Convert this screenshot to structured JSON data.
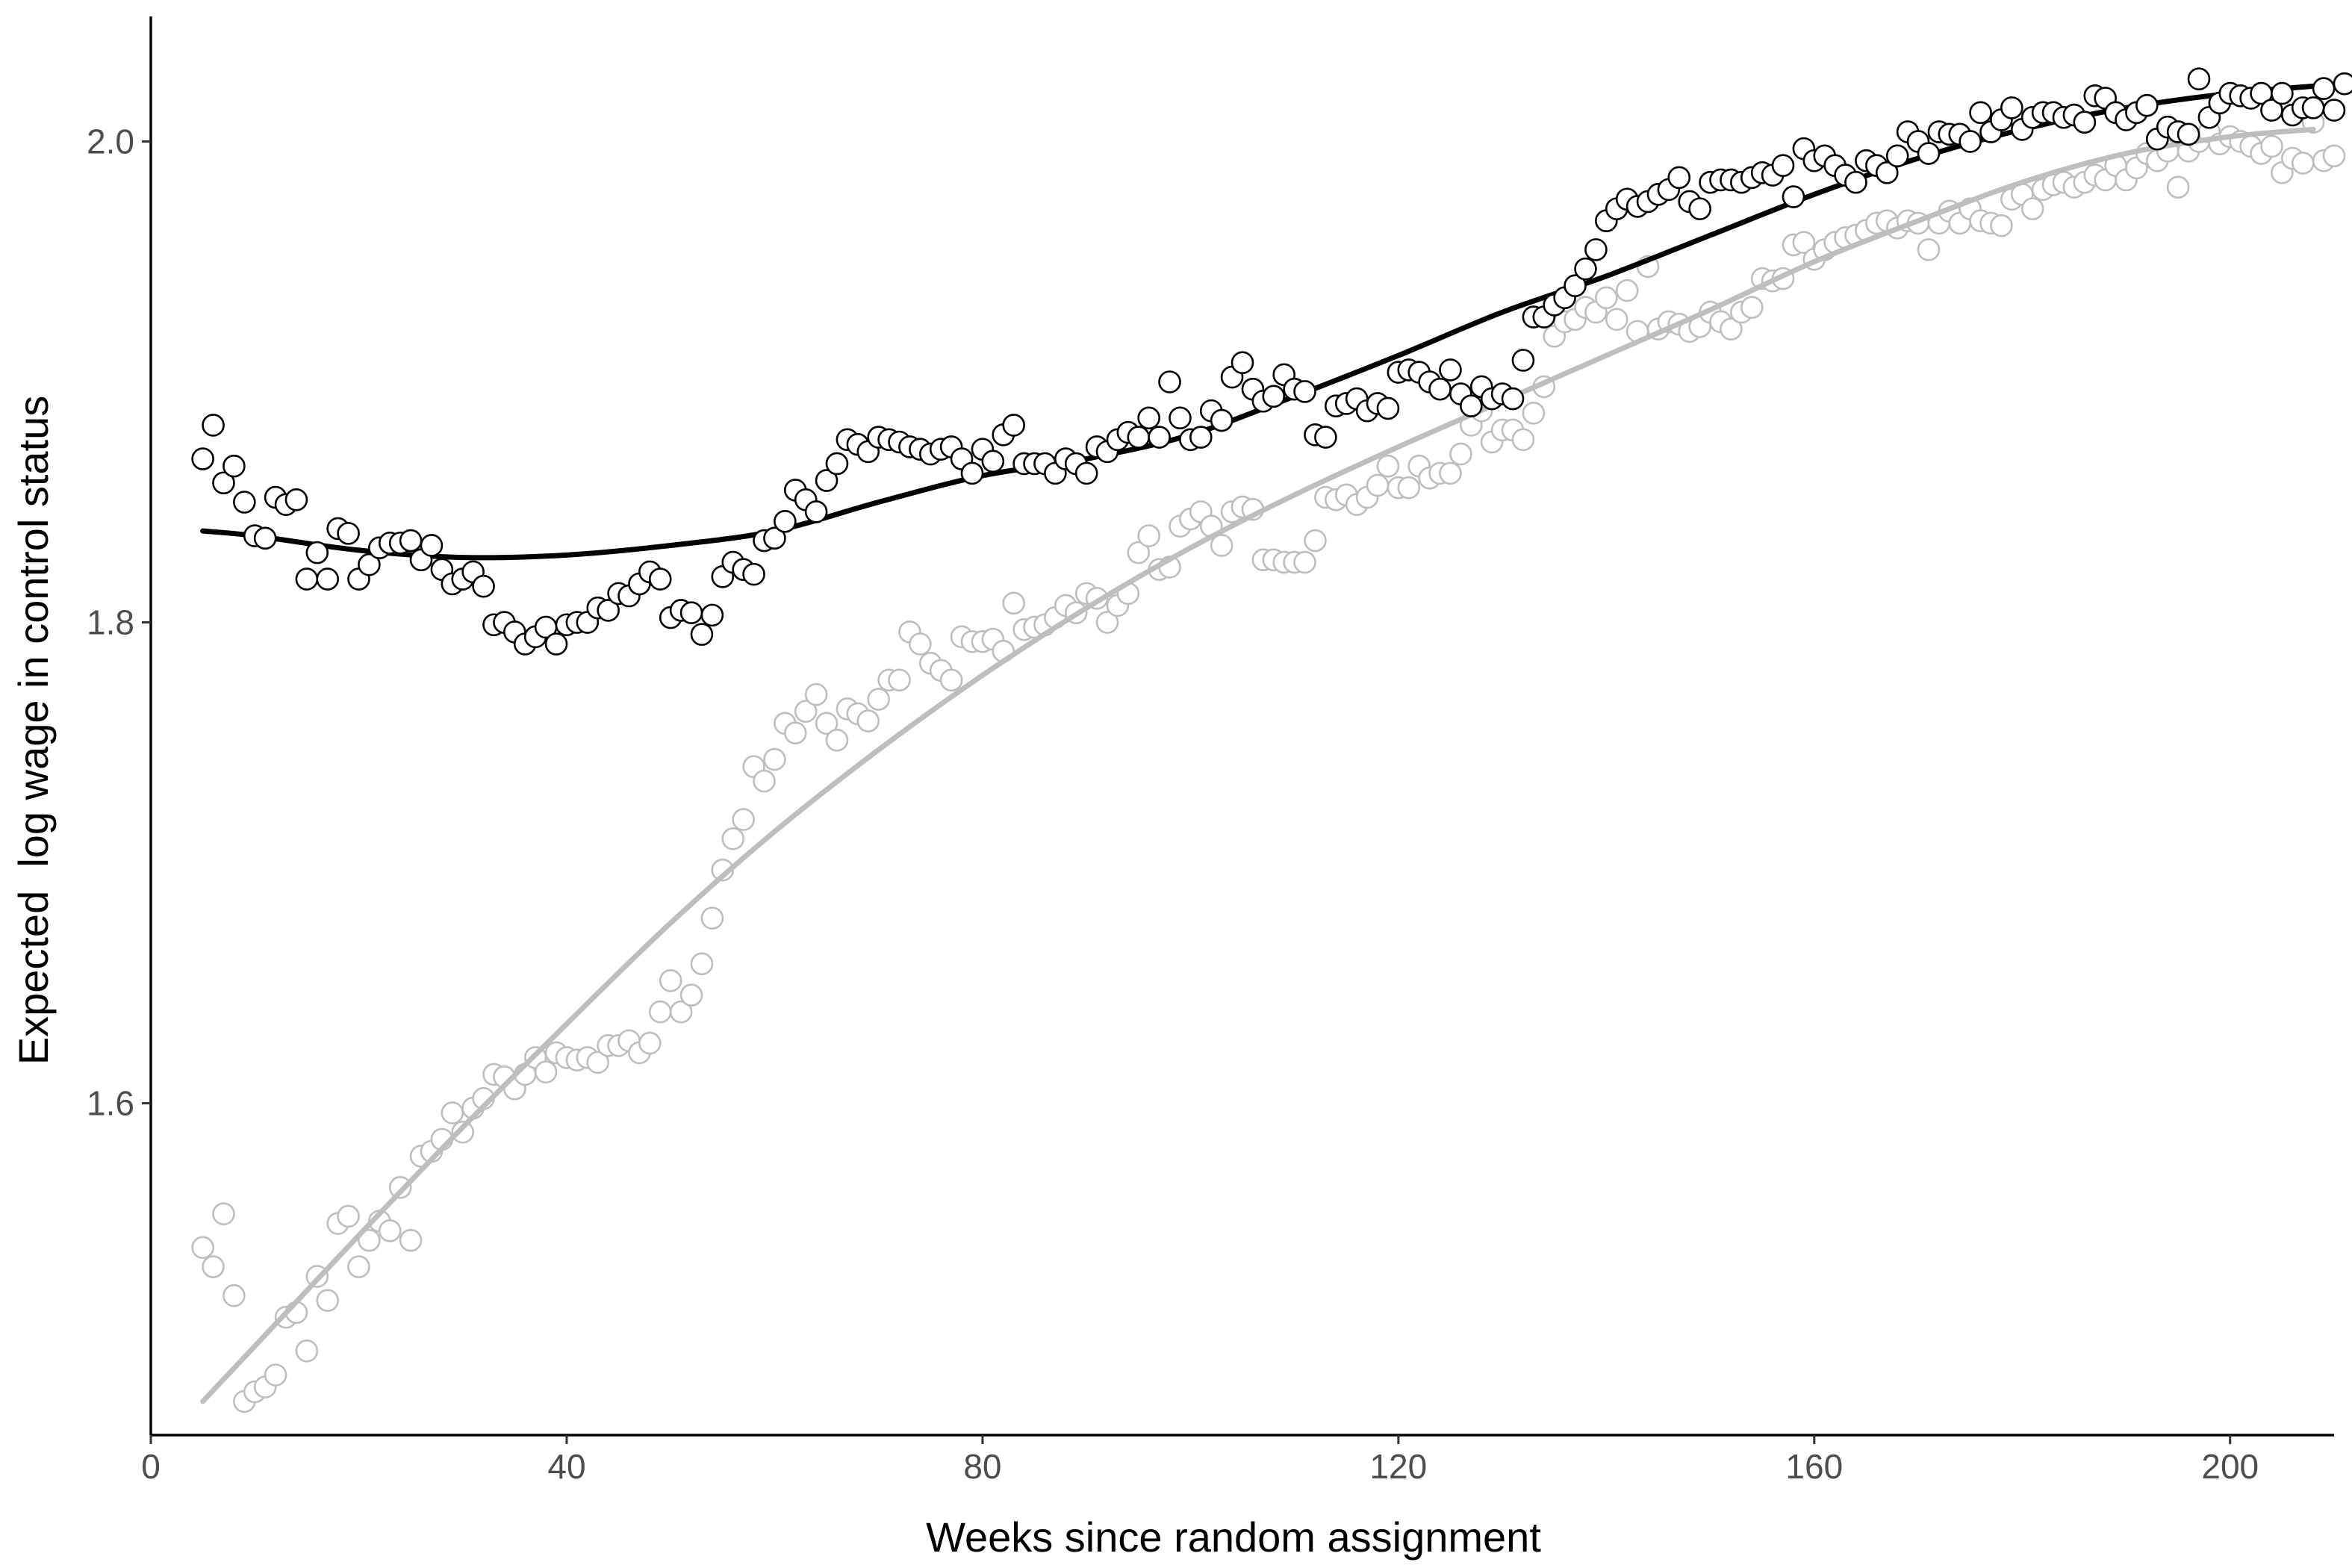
{
  "chart_data": {
    "type": "scatter",
    "title": "",
    "xlabel": "Weeks since random assignment",
    "ylabel": "Expected  log wage in control status",
    "xlim": [
      0,
      210
    ],
    "ylim": [
      1.462,
      2.052
    ],
    "xticks": [
      0,
      40,
      80,
      120,
      160,
      200
    ],
    "yticks": [
      1.6,
      1.8,
      2.0
    ],
    "xtick_labels": [
      "0",
      "40",
      "80",
      "120",
      "160",
      "200"
    ],
    "ytick_labels": [
      "1.6",
      "1.8",
      "2.0"
    ],
    "grid": false,
    "legend": "none",
    "x_start": 5,
    "series": [
      {
        "color": "#000000",
        "marker": "open-circle",
        "values": [
          1.868,
          1.882,
          1.858,
          1.865,
          1.85,
          1.836,
          1.835,
          1.852,
          1.849,
          1.851,
          1.818,
          1.829,
          1.818,
          1.839,
          1.837,
          1.818,
          1.824,
          1.831,
          1.833,
          1.833,
          1.834,
          1.826,
          1.832,
          1.822,
          1.816,
          1.818,
          1.821,
          1.815,
          1.799,
          1.8,
          1.796,
          1.791,
          1.794,
          1.798,
          1.791,
          1.799,
          1.8,
          1.8,
          1.806,
          1.805,
          1.812,
          1.811,
          1.816,
          1.821,
          1.818,
          1.802,
          1.805,
          1.804,
          1.795,
          1.803,
          1.819,
          1.825,
          1.822,
          1.82,
          1.834,
          1.835,
          1.842,
          1.855,
          1.851,
          1.846,
          1.859,
          1.866,
          1.876,
          1.874,
          1.871,
          1.877,
          1.876,
          1.875,
          1.873,
          1.872,
          1.87,
          1.872,
          1.873,
          1.868,
          1.862,
          1.872,
          1.867,
          1.878,
          1.882,
          1.866,
          1.866,
          1.866,
          1.862,
          1.868,
          1.866,
          1.862,
          1.873,
          1.871,
          1.876,
          1.879,
          1.877,
          1.885,
          1.877,
          1.9,
          1.885,
          1.876,
          1.877,
          1.888,
          1.884,
          1.902,
          1.908,
          1.897,
          1.892,
          1.894,
          1.903,
          1.897,
          1.896,
          1.878,
          1.877,
          1.89,
          1.891,
          1.893,
          1.888,
          1.891,
          1.889,
          1.904,
          1.905,
          1.904,
          1.9,
          1.897,
          1.905,
          1.895,
          1.89,
          1.898,
          1.893,
          1.895,
          1.893,
          1.909,
          1.927,
          1.927,
          1.932,
          1.935,
          1.94,
          1.947,
          1.955,
          1.967,
          1.972,
          1.976,
          1.973,
          1.975,
          1.978,
          1.98,
          1.985,
          1.975,
          1.972,
          1.983,
          1.984,
          1.984,
          1.983,
          1.985,
          1.987,
          1.986,
          1.99,
          1.977,
          1.997,
          1.992,
          1.994,
          1.99,
          1.986,
          1.983,
          1.992,
          1.99,
          1.987,
          1.994,
          2.004,
          2.0,
          1.995,
          2.004,
          2.003,
          2.003,
          2.0,
          2.012,
          2.004,
          2.009,
          2.014,
          2.005,
          2.01,
          2.012,
          2.012,
          2.01,
          2.011,
          2.008,
          2.019,
          2.018,
          2.012,
          2.009,
          2.012,
          2.015,
          2.001,
          2.006,
          2.004,
          2.003,
          2.026,
          2.01,
          2.016,
          2.02,
          2.019,
          2.018,
          2.02,
          2.013,
          2.02,
          2.011,
          2.014,
          2.014,
          2.022,
          2.013,
          2.024
        ]
      },
      {
        "color": "#bebebe",
        "marker": "open-circle",
        "values": [
          1.54,
          1.532,
          1.554,
          1.52,
          1.476,
          1.48,
          1.482,
          1.487,
          1.511,
          1.513,
          1.497,
          1.528,
          1.518,
          1.55,
          1.553,
          1.532,
          1.543,
          1.551,
          1.547,
          1.565,
          1.543,
          1.578,
          1.58,
          1.585,
          1.596,
          1.588,
          1.598,
          1.602,
          1.612,
          1.611,
          1.606,
          1.612,
          1.619,
          1.613,
          1.621,
          1.619,
          1.618,
          1.619,
          1.617,
          1.624,
          1.624,
          1.626,
          1.621,
          1.625,
          1.638,
          1.651,
          1.638,
          1.645,
          1.658,
          1.677,
          1.697,
          1.71,
          1.718,
          1.74,
          1.734,
          1.743,
          1.758,
          1.754,
          1.763,
          1.77,
          1.758,
          1.751,
          1.764,
          1.762,
          1.759,
          1.768,
          1.776,
          1.776,
          1.796,
          1.791,
          1.783,
          1.78,
          1.776,
          1.794,
          1.792,
          1.792,
          1.793,
          1.788,
          1.808,
          1.797,
          1.798,
          1.799,
          1.802,
          1.807,
          1.804,
          1.812,
          1.81,
          1.8,
          1.807,
          1.812,
          1.829,
          1.836,
          1.822,
          1.823,
          1.84,
          1.843,
          1.846,
          1.84,
          1.832,
          1.846,
          1.848,
          1.847,
          1.826,
          1.826,
          1.825,
          1.825,
          1.825,
          1.834,
          1.852,
          1.851,
          1.853,
          1.849,
          1.852,
          1.857,
          1.865,
          1.856,
          1.856,
          1.865,
          1.86,
          1.862,
          1.862,
          1.87,
          1.882,
          1.888,
          1.875,
          1.88,
          1.88,
          1.876,
          1.887,
          1.898,
          1.919,
          1.925,
          1.926,
          1.931,
          1.929,
          1.935,
          1.926,
          1.938,
          1.921,
          1.948,
          1.922,
          1.925,
          1.924,
          1.921,
          1.923,
          1.929,
          1.925,
          1.922,
          1.929,
          1.931,
          1.943,
          1.942,
          1.943,
          1.957,
          1.958,
          1.951,
          1.955,
          1.958,
          1.96,
          1.961,
          1.963,
          1.966,
          1.967,
          1.964,
          1.967,
          1.966,
          1.955,
          1.966,
          1.971,
          1.966,
          1.972,
          1.967,
          1.966,
          1.965,
          1.976,
          1.978,
          1.972,
          1.98,
          1.982,
          1.983,
          1.981,
          1.983,
          1.986,
          1.984,
          1.99,
          1.984,
          1.989,
          1.995,
          1.992,
          1.996,
          1.981,
          1.996,
          2.0,
          2.004,
          1.999,
          2.002,
          2.0,
          1.998,
          1.995,
          1.998,
          1.987,
          1.993,
          1.991,
          2.008,
          1.992,
          1.994
        ]
      }
    ],
    "fitted_lines": [
      {
        "color": "#000000",
        "x": [
          5,
          10,
          20,
          30,
          40,
          50,
          60,
          70,
          80,
          90,
          100,
          110,
          120,
          130,
          140,
          150,
          160,
          170,
          180,
          190,
          200,
          208
        ],
        "y": [
          1.838,
          1.836,
          1.83,
          1.827,
          1.828,
          1.832,
          1.838,
          1.85,
          1.861,
          1.868,
          1.878,
          1.894,
          1.911,
          1.929,
          1.944,
          1.961,
          1.978,
          1.993,
          2.005,
          2.014,
          2.02,
          2.023
        ]
      },
      {
        "color": "#bebebe",
        "x": [
          5,
          10,
          20,
          30,
          40,
          50,
          60,
          70,
          80,
          90,
          100,
          110,
          120,
          130,
          140,
          150,
          160,
          170,
          180,
          190,
          200,
          208
        ],
        "y": [
          1.476,
          1.499,
          1.545,
          1.59,
          1.633,
          1.675,
          1.713,
          1.747,
          1.778,
          1.806,
          1.831,
          1.853,
          1.873,
          1.892,
          1.911,
          1.93,
          1.95,
          1.967,
          1.983,
          1.995,
          2.002,
          2.005
        ]
      }
    ]
  }
}
